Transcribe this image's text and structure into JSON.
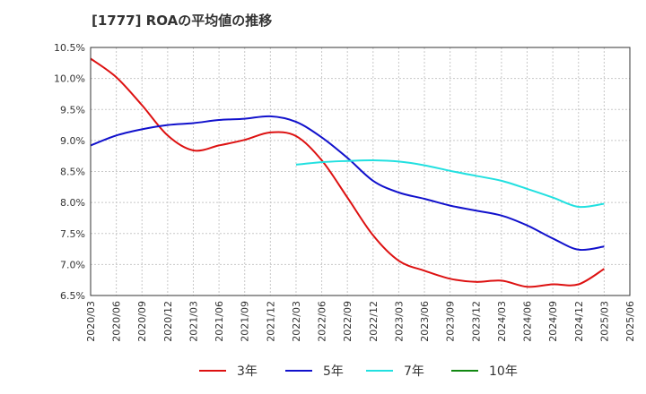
{
  "chart_data": {
    "type": "line",
    "title": "[1777]  ROAの平均値の推移",
    "x_ticks": [
      "2020/03",
      "2020/06",
      "2020/09",
      "2020/12",
      "2021/03",
      "2021/06",
      "2021/09",
      "2021/12",
      "2022/03",
      "2022/06",
      "2022/09",
      "2022/12",
      "2023/03",
      "2023/06",
      "2023/09",
      "2023/12",
      "2024/03",
      "2024/06",
      "2024/09",
      "2024/12",
      "2025/03",
      "2025/06"
    ],
    "y_ticks": [
      "10.5%",
      "10.0%",
      "9.5%",
      "9.0%",
      "8.5%",
      "8.0%",
      "7.5%",
      "7.0%",
      "6.5%"
    ],
    "ylim": [
      6.5,
      10.5
    ],
    "grid": true,
    "legend_position": "bottom",
    "series": [
      {
        "name": "3年",
        "color": "#dd1111",
        "x": [
          "2020/03",
          "2020/06",
          "2020/09",
          "2020/12",
          "2021/03",
          "2021/06",
          "2021/09",
          "2021/12",
          "2022/03",
          "2022/06",
          "2022/09",
          "2022/12",
          "2023/03",
          "2023/06",
          "2023/09",
          "2023/12",
          "2024/03",
          "2024/06",
          "2024/09",
          "2024/12",
          "2025/03"
        ],
        "values": [
          10.32,
          10.02,
          9.57,
          9.08,
          8.84,
          8.92,
          9.01,
          9.13,
          9.07,
          8.68,
          8.08,
          7.47,
          7.06,
          6.9,
          6.77,
          6.72,
          6.74,
          6.64,
          6.68,
          6.68,
          6.93
        ]
      },
      {
        "name": "5年",
        "color": "#1111cc",
        "x": [
          "2020/03",
          "2020/06",
          "2020/09",
          "2020/12",
          "2021/03",
          "2021/06",
          "2021/09",
          "2021/12",
          "2022/03",
          "2022/06",
          "2022/09",
          "2022/12",
          "2023/03",
          "2023/06",
          "2023/09",
          "2023/12",
          "2024/03",
          "2024/06",
          "2024/09",
          "2024/12",
          "2025/03"
        ],
        "values": [
          8.92,
          9.08,
          9.18,
          9.25,
          9.28,
          9.33,
          9.35,
          9.39,
          9.3,
          9.05,
          8.72,
          8.35,
          8.16,
          8.06,
          7.95,
          7.87,
          7.79,
          7.63,
          7.42,
          7.24,
          7.29
        ]
      },
      {
        "name": "7年",
        "color": "#22e0e0",
        "x": [
          "2022/03",
          "2022/06",
          "2022/09",
          "2022/12",
          "2023/03",
          "2023/06",
          "2023/09",
          "2023/12",
          "2024/03",
          "2024/06",
          "2024/09",
          "2024/12",
          "2025/03"
        ],
        "values": [
          8.61,
          8.65,
          8.67,
          8.68,
          8.66,
          8.6,
          8.51,
          8.43,
          8.35,
          8.22,
          8.08,
          7.93,
          7.98
        ]
      },
      {
        "name": "10年",
        "color": "#118811",
        "x": [],
        "values": []
      }
    ]
  }
}
